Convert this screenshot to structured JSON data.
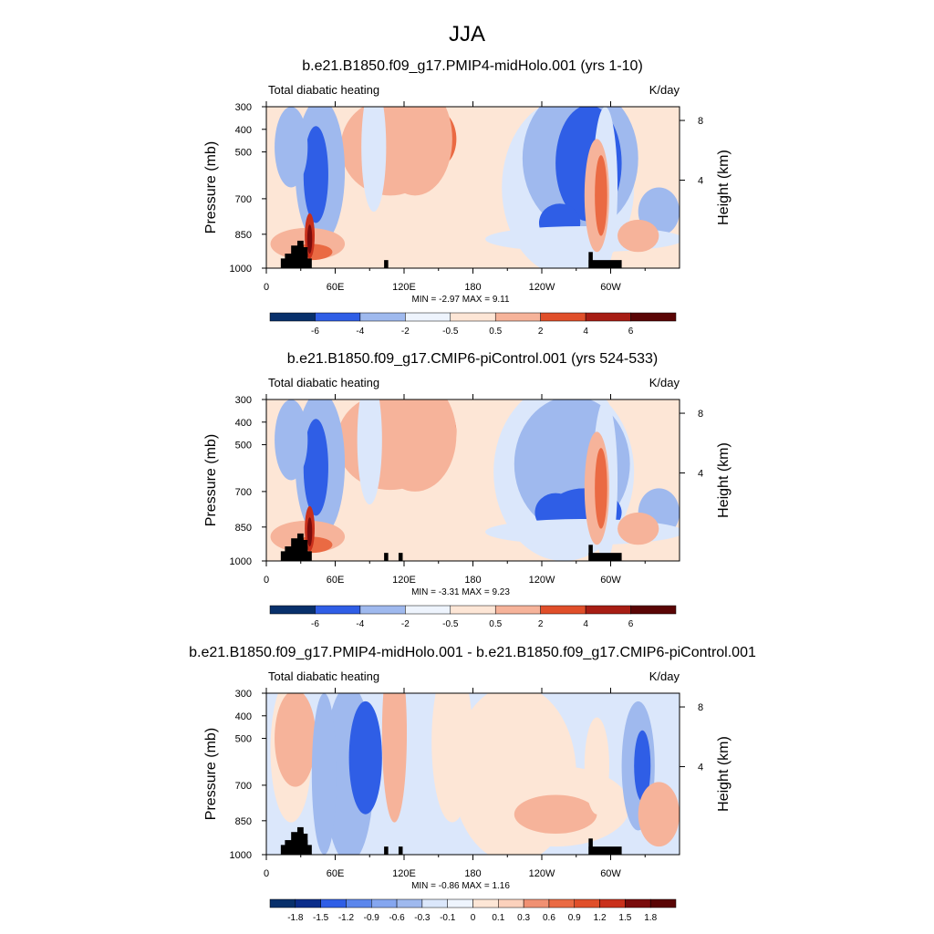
{
  "page_title": "JJA",
  "colors": {
    "land_mask": "#000000",
    "neg6": "#08306b",
    "neg3": "#2f5ee6",
    "neg1": "#9fb9ee",
    "neg0": "#dbe7fb",
    "pos0": "#fde6d6",
    "pos1": "#f6b39a",
    "pos3": "#ea6a43",
    "pos6": "#c9301b",
    "pos9": "#7a0c0c"
  },
  "chart_data": [
    {
      "type": "heatmap",
      "title": "b.e21.B1850.f09_g17.PMIP4-midHolo.001 (yrs 1-10)",
      "subtitle_left": "Total diabatic heating",
      "subtitle_right": "K/day",
      "ylabel": "Pressure (mb)",
      "ylabel_right": "Height (km)",
      "x_ticks": [
        "0",
        "60E",
        "120E",
        "180",
        "120W",
        "60W"
      ],
      "y_ticks": [
        "300",
        "400",
        "500",
        "700",
        "850",
        "1000"
      ],
      "y_right_ticks": [
        "8",
        "4"
      ],
      "stats": "MIN =  -2.97  MAX =   9.11",
      "colorbar_labels": [
        "-6",
        "-4",
        "-2",
        "-0.5",
        "0.5",
        "2",
        "4",
        "6"
      ]
    },
    {
      "type": "heatmap",
      "title": "b.e21.B1850.f09_g17.CMIP6-piControl.001 (yrs 524-533)",
      "subtitle_left": "Total diabatic heating",
      "subtitle_right": "K/day",
      "ylabel": "Pressure (mb)",
      "ylabel_right": "Height (km)",
      "x_ticks": [
        "0",
        "60E",
        "120E",
        "180",
        "120W",
        "60W"
      ],
      "y_ticks": [
        "300",
        "400",
        "500",
        "700",
        "850",
        "1000"
      ],
      "y_right_ticks": [
        "8",
        "4"
      ],
      "stats": "MIN =  -3.31  MAX =   9.23",
      "colorbar_labels": [
        "-6",
        "-4",
        "-2",
        "-0.5",
        "0.5",
        "2",
        "4",
        "6"
      ]
    },
    {
      "type": "heatmap",
      "title": "b.e21.B1850.f09_g17.PMIP4-midHolo.001 - b.e21.B1850.f09_g17.CMIP6-piControl.001",
      "subtitle_left": "Total diabatic heating",
      "subtitle_right": "K/day",
      "ylabel": "Pressure (mb)",
      "ylabel_right": "Height (km)",
      "x_ticks": [
        "0",
        "60E",
        "120E",
        "180",
        "120W",
        "60W"
      ],
      "y_ticks": [
        "300",
        "400",
        "500",
        "700",
        "850",
        "1000"
      ],
      "y_right_ticks": [
        "8",
        "4"
      ],
      "stats": "MIN =  -0.86  MAX =   1.16",
      "colorbar_labels": [
        "-1.8",
        "-1.5",
        "-1.2",
        "-0.9",
        "-0.6",
        "-0.3",
        "-0.1",
        "0",
        "0.1",
        "0.3",
        "0.6",
        "0.9",
        "1.2",
        "1.5",
        "1.8"
      ]
    }
  ]
}
